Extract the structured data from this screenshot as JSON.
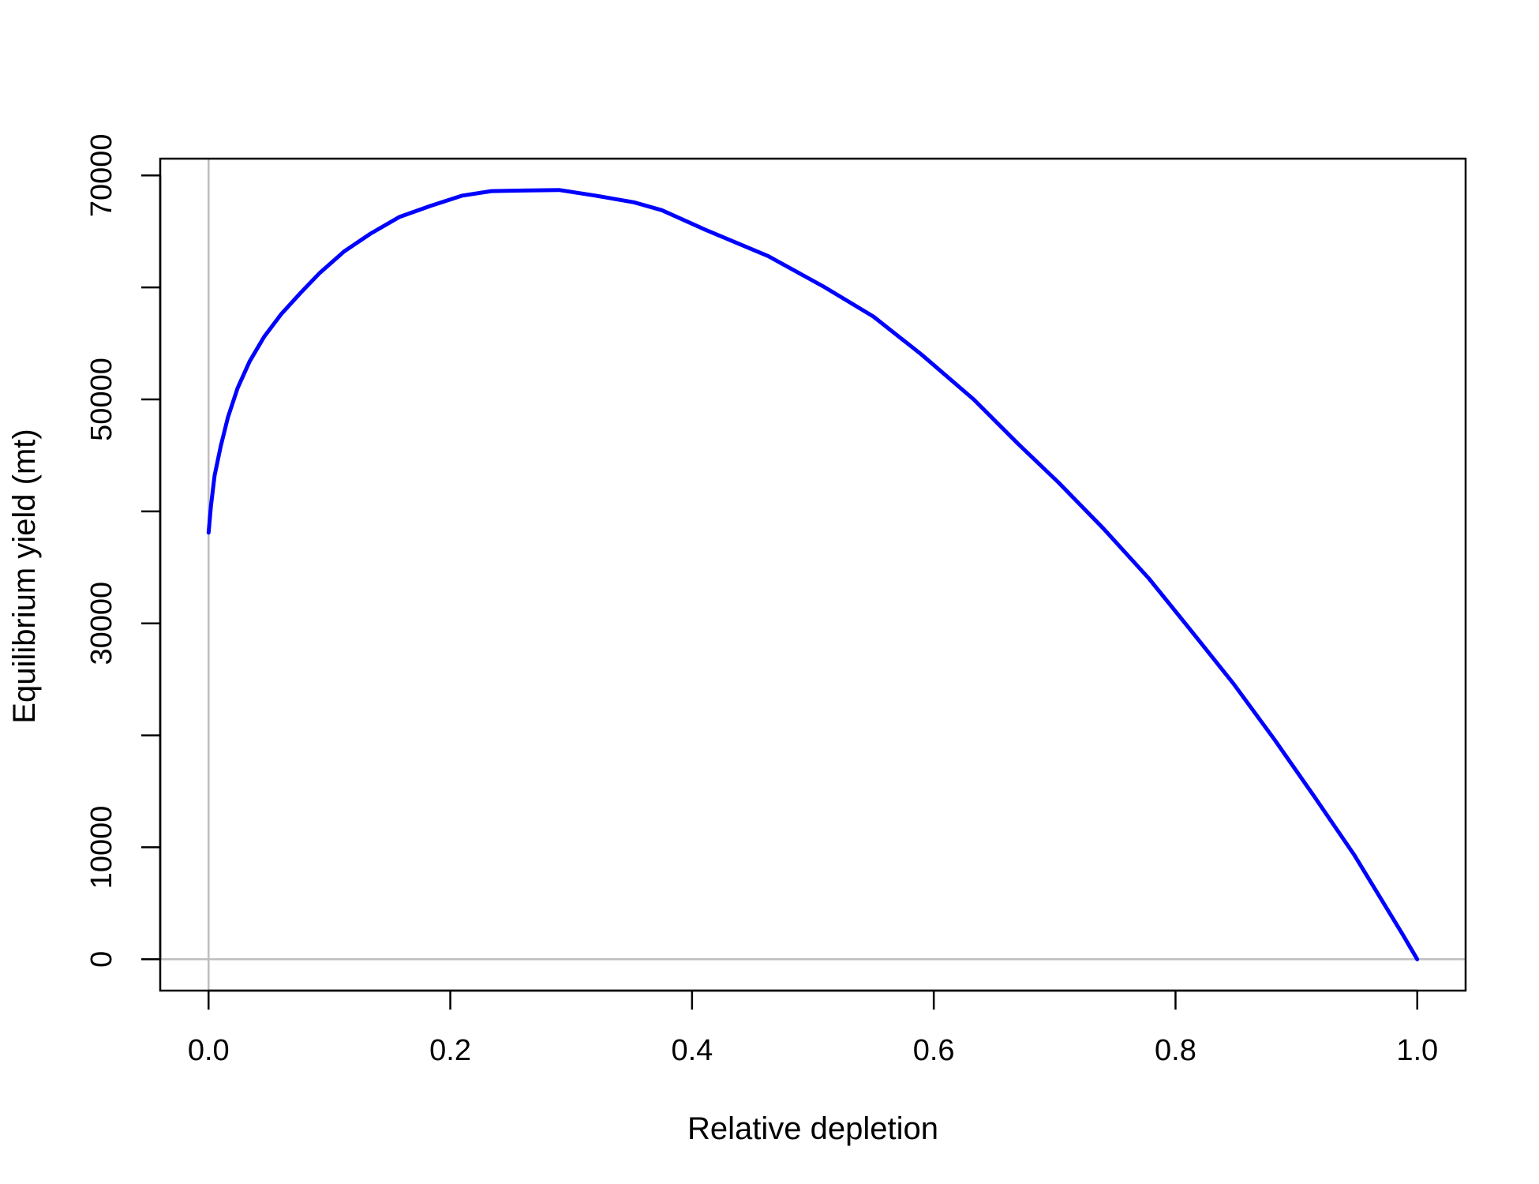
{
  "chart_data": {
    "type": "line",
    "title": "",
    "xlabel": "Relative depletion",
    "ylabel": "Equilibrium yield (mt)",
    "xlim": [
      -0.04,
      1.04
    ],
    "ylim": [
      -2800,
      71500
    ],
    "x_ticks": [
      0.0,
      0.2,
      0.4,
      0.6,
      0.8,
      1.0
    ],
    "x_tick_labels": [
      "0.0",
      "0.2",
      "0.4",
      "0.6",
      "0.8",
      "1.0"
    ],
    "y_ticks": [
      0,
      10000,
      20000,
      30000,
      40000,
      50000,
      60000,
      70000
    ],
    "y_tick_labels": [
      "0",
      "10000",
      "",
      "30000",
      "",
      "50000",
      "",
      "70000"
    ],
    "reference_lines": {
      "x": 0,
      "y": 0,
      "color": "#bebebe"
    },
    "grid": false,
    "legend": "none",
    "series": [
      {
        "color": "#0000ff",
        "x": [
          0.0,
          0.002,
          0.005,
          0.01,
          0.016,
          0.024,
          0.034,
          0.046,
          0.06,
          0.076,
          0.092,
          0.112,
          0.134,
          0.158,
          0.184,
          0.21,
          0.234,
          0.26,
          0.29,
          0.32,
          0.352,
          0.375,
          0.41,
          0.463,
          0.51,
          0.55,
          0.59,
          0.633,
          0.67,
          0.703,
          0.74,
          0.778,
          0.811,
          0.848,
          0.882,
          0.915,
          0.948,
          0.975,
          0.988,
          1.0
        ],
        "y": [
          38100,
          40500,
          43200,
          45800,
          48400,
          51000,
          53400,
          55600,
          57600,
          59500,
          61300,
          63200,
          64800,
          66300,
          67300,
          68200,
          68600,
          68650,
          68700,
          68200,
          67600,
          66900,
          65200,
          62800,
          60000,
          57400,
          54000,
          50000,
          46000,
          42600,
          38500,
          34000,
          29600,
          24600,
          19600,
          14500,
          9300,
          4500,
          2200,
          0
        ]
      }
    ]
  }
}
